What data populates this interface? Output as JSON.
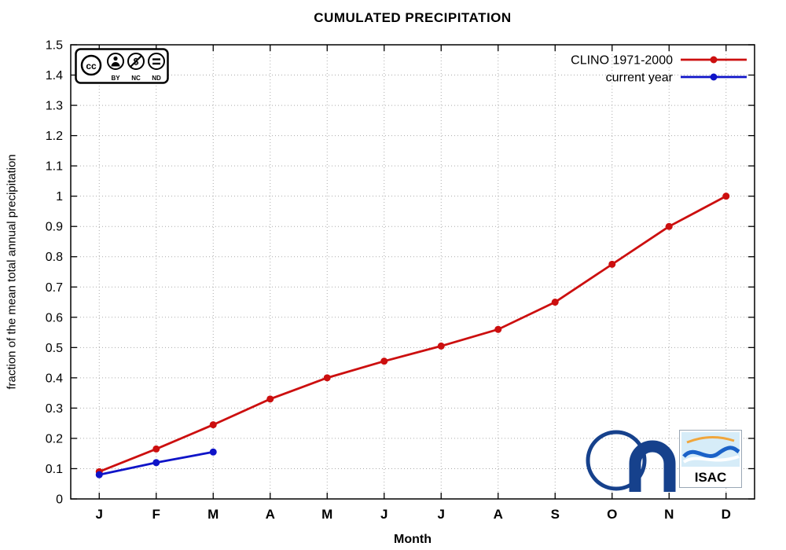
{
  "chart_data": {
    "type": "line",
    "title": "CUMULATED PRECIPITATION",
    "xlabel": "Month",
    "ylabel": "fraction of the mean total annual precipitation",
    "categories": [
      "J",
      "F",
      "M",
      "A",
      "M",
      "J",
      "J",
      "A",
      "S",
      "O",
      "N",
      "D"
    ],
    "ylim": [
      0,
      1.5
    ],
    "ytick_step": 0.1,
    "grid": true,
    "legend_position": "top-right-inside",
    "series": [
      {
        "name": "CLINO 1971-2000",
        "color": "#cc0f0f",
        "marker": "circle",
        "values": [
          0.09,
          0.165,
          0.245,
          0.33,
          0.4,
          0.455,
          0.505,
          0.56,
          0.65,
          0.775,
          0.9,
          1.0
        ]
      },
      {
        "name": "current year",
        "color": "#0f14c8",
        "marker": "circle",
        "values": [
          0.08,
          0.12,
          0.155
        ]
      }
    ]
  },
  "cc_badge": {
    "cc_label": "cc",
    "labels": [
      "BY",
      "NC",
      "ND"
    ]
  },
  "logos": {
    "isac_label": "ISAC"
  },
  "colors": {
    "cnr_blue": "#16418c",
    "isac_blue": "#1b62c8",
    "isac_bg": "#d6ecf8",
    "isac_orange": "#f0a63c",
    "grid_gray": "#aaaaaa"
  }
}
